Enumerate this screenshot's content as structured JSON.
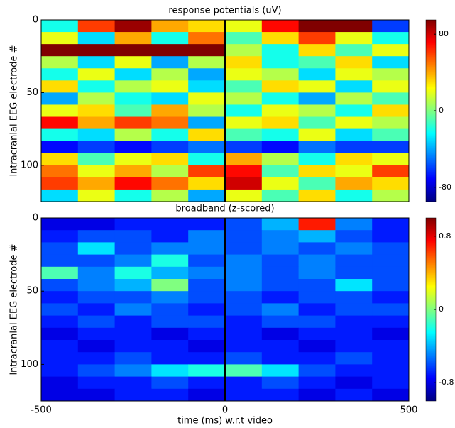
{
  "chart_data": [
    {
      "type": "heatmap",
      "title": "response potentials (uV)",
      "ylabel": "intracranial EEG electrode #",
      "xlim": [
        -500,
        500
      ],
      "ylim": [
        125,
        0
      ],
      "yticks": [
        0,
        50,
        100
      ],
      "vline": 0,
      "clim": [
        -95,
        95
      ],
      "cticks": [
        -80,
        0,
        80
      ],
      "z": [
        [
          -20,
          60,
          90,
          40,
          30,
          20,
          70,
          95,
          95,
          -60
        ],
        [
          20,
          -30,
          40,
          -20,
          50,
          -10,
          30,
          60,
          20,
          -20
        ],
        [
          95,
          95,
          95,
          95,
          95,
          10,
          -20,
          30,
          -10,
          20
        ],
        [
          10,
          -30,
          20,
          -40,
          10,
          30,
          -20,
          -10,
          30,
          -30
        ],
        [
          -20,
          20,
          -30,
          10,
          -40,
          20,
          10,
          -30,
          20,
          10
        ],
        [
          30,
          -20,
          10,
          20,
          -30,
          -10,
          30,
          20,
          -30,
          20
        ],
        [
          -40,
          10,
          -20,
          -30,
          20,
          10,
          -20,
          -40,
          10,
          -10
        ],
        [
          20,
          30,
          -10,
          40,
          10,
          -20,
          20,
          10,
          -20,
          30
        ],
        [
          70,
          40,
          60,
          50,
          -40,
          20,
          30,
          -10,
          20,
          10
        ],
        [
          -20,
          -30,
          10,
          -20,
          30,
          -10,
          -20,
          20,
          -30,
          -10
        ],
        [
          -70,
          -60,
          -70,
          -60,
          -50,
          -60,
          -70,
          -50,
          -60,
          -60
        ],
        [
          30,
          -10,
          20,
          30,
          -20,
          40,
          10,
          -20,
          30,
          20
        ],
        [
          50,
          20,
          40,
          10,
          60,
          70,
          -10,
          30,
          20,
          60
        ],
        [
          60,
          40,
          70,
          50,
          30,
          80,
          20,
          -10,
          40,
          30
        ],
        [
          -30,
          20,
          -20,
          10,
          -40,
          20,
          -10,
          30,
          -20,
          10
        ]
      ]
    },
    {
      "type": "heatmap",
      "title": "broadband (z-scored)",
      "ylabel": "intracranial EEG electrode #",
      "xlabel": "time (ms) w.r.t video",
      "xlim": [
        -500,
        500
      ],
      "xticks": [
        -500,
        0,
        500
      ],
      "ylim": [
        125,
        0
      ],
      "yticks": [
        0,
        50,
        100
      ],
      "vline": 0,
      "clim": [
        -1,
        1
      ],
      "cticks": [
        -0.8,
        0,
        0.8
      ],
      "z": [
        [
          -0.8,
          -0.8,
          -0.7,
          -0.7,
          -0.7,
          -0.6,
          -0.4,
          0.7,
          -0.5,
          -0.7
        ],
        [
          -0.7,
          -0.6,
          -0.6,
          -0.7,
          -0.5,
          -0.6,
          -0.5,
          -0.4,
          -0.6,
          -0.7
        ],
        [
          -0.6,
          -0.3,
          -0.6,
          -0.5,
          -0.5,
          -0.6,
          -0.5,
          -0.6,
          -0.5,
          -0.6
        ],
        [
          -0.6,
          -0.6,
          -0.5,
          -0.2,
          -0.6,
          -0.5,
          -0.6,
          -0.5,
          -0.6,
          -0.6
        ],
        [
          -0.1,
          -0.5,
          -0.2,
          -0.4,
          -0.5,
          -0.5,
          -0.6,
          -0.5,
          -0.6,
          -0.6
        ],
        [
          -0.6,
          -0.5,
          -0.4,
          0.0,
          -0.6,
          -0.5,
          -0.6,
          -0.6,
          -0.3,
          -0.6
        ],
        [
          -0.7,
          -0.6,
          -0.6,
          -0.5,
          -0.6,
          -0.6,
          -0.7,
          -0.6,
          -0.6,
          -0.7
        ],
        [
          -0.6,
          -0.7,
          -0.5,
          -0.6,
          -0.7,
          -0.6,
          -0.5,
          -0.7,
          -0.6,
          -0.6
        ],
        [
          -0.7,
          -0.6,
          -0.7,
          -0.6,
          -0.6,
          -0.7,
          -0.6,
          -0.6,
          -0.7,
          -0.7
        ],
        [
          -0.8,
          -0.7,
          -0.7,
          -0.8,
          -0.7,
          -0.7,
          -0.8,
          -0.7,
          -0.7,
          -0.8
        ],
        [
          -0.7,
          -0.8,
          -0.7,
          -0.7,
          -0.8,
          -0.7,
          -0.7,
          -0.8,
          -0.7,
          -0.7
        ],
        [
          -0.7,
          -0.7,
          -0.6,
          -0.7,
          -0.7,
          -0.6,
          -0.7,
          -0.7,
          -0.6,
          -0.7
        ],
        [
          -0.7,
          -0.6,
          -0.5,
          -0.3,
          -0.2,
          -0.1,
          -0.3,
          -0.6,
          -0.7,
          -0.7
        ],
        [
          -0.8,
          -0.7,
          -0.7,
          -0.6,
          -0.7,
          -0.7,
          -0.6,
          -0.7,
          -0.8,
          -0.7
        ],
        [
          -0.8,
          -0.8,
          -0.7,
          -0.7,
          -0.8,
          -0.7,
          -0.7,
          -0.8,
          -0.7,
          -0.8
        ]
      ]
    }
  ]
}
